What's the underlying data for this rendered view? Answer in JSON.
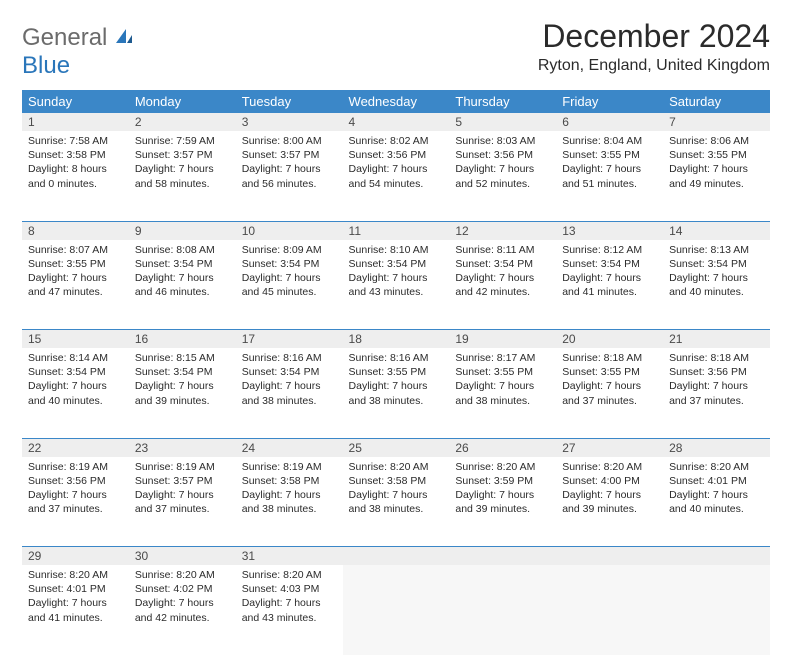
{
  "logo": {
    "main": "General",
    "sub": "Blue"
  },
  "title": "December 2024",
  "location": "Ryton, England, United Kingdom",
  "colors": {
    "header_bg": "#3b87c8",
    "header_text": "#ffffff",
    "daynum_bg": "#eeeeee",
    "row_divider": "#3b87c8",
    "body_text": "#2b2b2b",
    "logo_gray": "#6b6b6b",
    "logo_blue": "#2a76ba"
  },
  "weekdays": [
    "Sunday",
    "Monday",
    "Tuesday",
    "Wednesday",
    "Thursday",
    "Friday",
    "Saturday"
  ],
  "weeks": [
    [
      {
        "day": "1",
        "sunrise": "Sunrise: 7:58 AM",
        "sunset": "Sunset: 3:58 PM",
        "daylight1": "Daylight: 8 hours",
        "daylight2": "and 0 minutes."
      },
      {
        "day": "2",
        "sunrise": "Sunrise: 7:59 AM",
        "sunset": "Sunset: 3:57 PM",
        "daylight1": "Daylight: 7 hours",
        "daylight2": "and 58 minutes."
      },
      {
        "day": "3",
        "sunrise": "Sunrise: 8:00 AM",
        "sunset": "Sunset: 3:57 PM",
        "daylight1": "Daylight: 7 hours",
        "daylight2": "and 56 minutes."
      },
      {
        "day": "4",
        "sunrise": "Sunrise: 8:02 AM",
        "sunset": "Sunset: 3:56 PM",
        "daylight1": "Daylight: 7 hours",
        "daylight2": "and 54 minutes."
      },
      {
        "day": "5",
        "sunrise": "Sunrise: 8:03 AM",
        "sunset": "Sunset: 3:56 PM",
        "daylight1": "Daylight: 7 hours",
        "daylight2": "and 52 minutes."
      },
      {
        "day": "6",
        "sunrise": "Sunrise: 8:04 AM",
        "sunset": "Sunset: 3:55 PM",
        "daylight1": "Daylight: 7 hours",
        "daylight2": "and 51 minutes."
      },
      {
        "day": "7",
        "sunrise": "Sunrise: 8:06 AM",
        "sunset": "Sunset: 3:55 PM",
        "daylight1": "Daylight: 7 hours",
        "daylight2": "and 49 minutes."
      }
    ],
    [
      {
        "day": "8",
        "sunrise": "Sunrise: 8:07 AM",
        "sunset": "Sunset: 3:55 PM",
        "daylight1": "Daylight: 7 hours",
        "daylight2": "and 47 minutes."
      },
      {
        "day": "9",
        "sunrise": "Sunrise: 8:08 AM",
        "sunset": "Sunset: 3:54 PM",
        "daylight1": "Daylight: 7 hours",
        "daylight2": "and 46 minutes."
      },
      {
        "day": "10",
        "sunrise": "Sunrise: 8:09 AM",
        "sunset": "Sunset: 3:54 PM",
        "daylight1": "Daylight: 7 hours",
        "daylight2": "and 45 minutes."
      },
      {
        "day": "11",
        "sunrise": "Sunrise: 8:10 AM",
        "sunset": "Sunset: 3:54 PM",
        "daylight1": "Daylight: 7 hours",
        "daylight2": "and 43 minutes."
      },
      {
        "day": "12",
        "sunrise": "Sunrise: 8:11 AM",
        "sunset": "Sunset: 3:54 PM",
        "daylight1": "Daylight: 7 hours",
        "daylight2": "and 42 minutes."
      },
      {
        "day": "13",
        "sunrise": "Sunrise: 8:12 AM",
        "sunset": "Sunset: 3:54 PM",
        "daylight1": "Daylight: 7 hours",
        "daylight2": "and 41 minutes."
      },
      {
        "day": "14",
        "sunrise": "Sunrise: 8:13 AM",
        "sunset": "Sunset: 3:54 PM",
        "daylight1": "Daylight: 7 hours",
        "daylight2": "and 40 minutes."
      }
    ],
    [
      {
        "day": "15",
        "sunrise": "Sunrise: 8:14 AM",
        "sunset": "Sunset: 3:54 PM",
        "daylight1": "Daylight: 7 hours",
        "daylight2": "and 40 minutes."
      },
      {
        "day": "16",
        "sunrise": "Sunrise: 8:15 AM",
        "sunset": "Sunset: 3:54 PM",
        "daylight1": "Daylight: 7 hours",
        "daylight2": "and 39 minutes."
      },
      {
        "day": "17",
        "sunrise": "Sunrise: 8:16 AM",
        "sunset": "Sunset: 3:54 PM",
        "daylight1": "Daylight: 7 hours",
        "daylight2": "and 38 minutes."
      },
      {
        "day": "18",
        "sunrise": "Sunrise: 8:16 AM",
        "sunset": "Sunset: 3:55 PM",
        "daylight1": "Daylight: 7 hours",
        "daylight2": "and 38 minutes."
      },
      {
        "day": "19",
        "sunrise": "Sunrise: 8:17 AM",
        "sunset": "Sunset: 3:55 PM",
        "daylight1": "Daylight: 7 hours",
        "daylight2": "and 38 minutes."
      },
      {
        "day": "20",
        "sunrise": "Sunrise: 8:18 AM",
        "sunset": "Sunset: 3:55 PM",
        "daylight1": "Daylight: 7 hours",
        "daylight2": "and 37 minutes."
      },
      {
        "day": "21",
        "sunrise": "Sunrise: 8:18 AM",
        "sunset": "Sunset: 3:56 PM",
        "daylight1": "Daylight: 7 hours",
        "daylight2": "and 37 minutes."
      }
    ],
    [
      {
        "day": "22",
        "sunrise": "Sunrise: 8:19 AM",
        "sunset": "Sunset: 3:56 PM",
        "daylight1": "Daylight: 7 hours",
        "daylight2": "and 37 minutes."
      },
      {
        "day": "23",
        "sunrise": "Sunrise: 8:19 AM",
        "sunset": "Sunset: 3:57 PM",
        "daylight1": "Daylight: 7 hours",
        "daylight2": "and 37 minutes."
      },
      {
        "day": "24",
        "sunrise": "Sunrise: 8:19 AM",
        "sunset": "Sunset: 3:58 PM",
        "daylight1": "Daylight: 7 hours",
        "daylight2": "and 38 minutes."
      },
      {
        "day": "25",
        "sunrise": "Sunrise: 8:20 AM",
        "sunset": "Sunset: 3:58 PM",
        "daylight1": "Daylight: 7 hours",
        "daylight2": "and 38 minutes."
      },
      {
        "day": "26",
        "sunrise": "Sunrise: 8:20 AM",
        "sunset": "Sunset: 3:59 PM",
        "daylight1": "Daylight: 7 hours",
        "daylight2": "and 39 minutes."
      },
      {
        "day": "27",
        "sunrise": "Sunrise: 8:20 AM",
        "sunset": "Sunset: 4:00 PM",
        "daylight1": "Daylight: 7 hours",
        "daylight2": "and 39 minutes."
      },
      {
        "day": "28",
        "sunrise": "Sunrise: 8:20 AM",
        "sunset": "Sunset: 4:01 PM",
        "daylight1": "Daylight: 7 hours",
        "daylight2": "and 40 minutes."
      }
    ],
    [
      {
        "day": "29",
        "sunrise": "Sunrise: 8:20 AM",
        "sunset": "Sunset: 4:01 PM",
        "daylight1": "Daylight: 7 hours",
        "daylight2": "and 41 minutes."
      },
      {
        "day": "30",
        "sunrise": "Sunrise: 8:20 AM",
        "sunset": "Sunset: 4:02 PM",
        "daylight1": "Daylight: 7 hours",
        "daylight2": "and 42 minutes."
      },
      {
        "day": "31",
        "sunrise": "Sunrise: 8:20 AM",
        "sunset": "Sunset: 4:03 PM",
        "daylight1": "Daylight: 7 hours",
        "daylight2": "and 43 minutes."
      },
      null,
      null,
      null,
      null
    ]
  ]
}
